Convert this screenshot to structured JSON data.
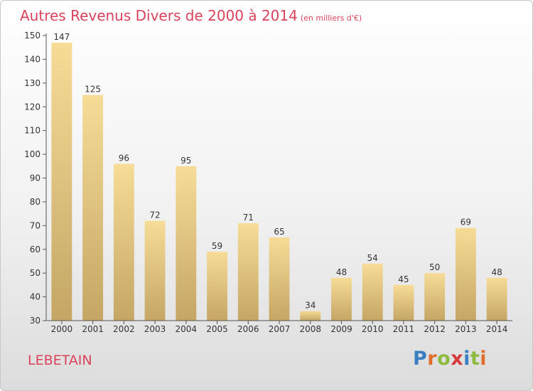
{
  "header": {
    "title": "Autres Revenus Divers de 2000 à 2014",
    "subtitle": "(en milliers d'€)"
  },
  "footer": {
    "place": "LEBETAIN",
    "logo": {
      "letters": [
        "P",
        "r",
        "o",
        "x",
        "i",
        "t",
        "i"
      ],
      "colors": [
        "#3a7fc1",
        "#e06d2c",
        "#8cbb3e",
        "#d63a3a",
        "#3a7fc1",
        "#8cbb3e",
        "#e06d2c"
      ]
    }
  },
  "chart_data": {
    "type": "bar",
    "title": "Autres Revenus Divers de 2000 à 2014",
    "subtitle": "(en milliers d'€)",
    "xlabel": "",
    "ylabel": "",
    "categories": [
      "2000",
      "2001",
      "2002",
      "2003",
      "2004",
      "2005",
      "2006",
      "2007",
      "2008",
      "2009",
      "2010",
      "2011",
      "2012",
      "2013",
      "2014"
    ],
    "values": [
      147,
      125,
      96,
      72,
      95,
      59,
      71,
      65,
      34,
      48,
      54,
      45,
      50,
      69,
      48
    ],
    "ylim": [
      30,
      150
    ],
    "yticks": [
      30,
      40,
      50,
      60,
      70,
      80,
      90,
      100,
      110,
      120,
      130,
      140,
      150
    ],
    "grid": false,
    "colors": {
      "bar_top": "#f6dc97",
      "bar_bottom": "#c5a665",
      "axis": "#555555"
    }
  }
}
